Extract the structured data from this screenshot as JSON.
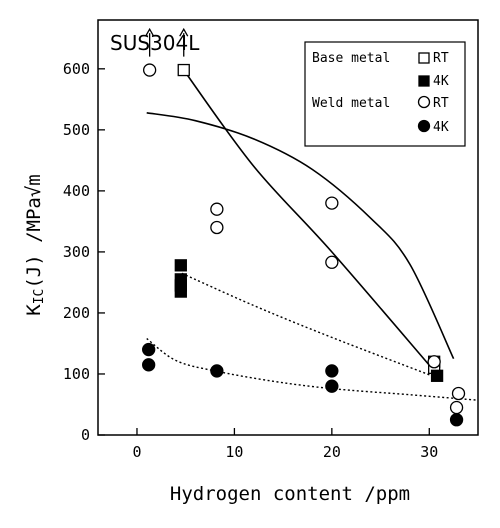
{
  "chart_data": {
    "type": "scatter",
    "title": "SUS304L",
    "xlabel": "Hydrogen content /ppm",
    "ylabel": "K",
    "ylabel_sub": "IC",
    "ylabel_rest": "(J) /MPa√m",
    "xlim": [
      -4,
      35
    ],
    "ylim": [
      0,
      680
    ],
    "xticks": [
      0,
      10,
      20,
      30
    ],
    "yticks": [
      0,
      100,
      200,
      300,
      400,
      500,
      600
    ],
    "grid": false,
    "legend_position": "top-right",
    "legend": {
      "groups": [
        {
          "label": "Base metal",
          "entries": [
            {
              "label": "RT",
              "marker": "open-square"
            },
            {
              "label": "4K",
              "marker": "filled-square"
            }
          ]
        },
        {
          "label": "Weld metal",
          "entries": [
            {
              "label": "RT",
              "marker": "open-circle"
            },
            {
              "label": "4K",
              "marker": "filled-circle"
            }
          ]
        }
      ]
    },
    "series": [
      {
        "group": "Base metal",
        "name": "RT",
        "marker": "open-square",
        "points": [
          [
            4.8,
            598
          ],
          [
            30.5,
            120
          ],
          [
            30.5,
            110
          ]
        ]
      },
      {
        "group": "Base metal",
        "name": "4K",
        "marker": "filled-square",
        "points": [
          [
            4.5,
            278
          ],
          [
            4.5,
            255
          ],
          [
            4.5,
            245
          ],
          [
            4.5,
            235
          ],
          [
            30.8,
            97
          ]
        ]
      },
      {
        "group": "Weld metal",
        "name": "RT",
        "marker": "open-circle",
        "points": [
          [
            1.3,
            598
          ],
          [
            8.2,
            370
          ],
          [
            8.2,
            340
          ],
          [
            20.0,
            380
          ],
          [
            20.0,
            283
          ],
          [
            30.5,
            120
          ],
          [
            33.0,
            68
          ],
          [
            32.8,
            45
          ]
        ]
      },
      {
        "group": "Weld metal",
        "name": "4K",
        "marker": "filled-circle",
        "points": [
          [
            1.2,
            140
          ],
          [
            1.2,
            115
          ],
          [
            8.2,
            105
          ],
          [
            20.0,
            105
          ],
          [
            20.0,
            80
          ],
          [
            32.8,
            25
          ]
        ]
      }
    ],
    "curves": [
      {
        "style": "solid",
        "points": [
          [
            4.8,
            598
          ],
          [
            12,
            440
          ],
          [
            20,
            300
          ],
          [
            30.5,
            105
          ]
        ]
      },
      {
        "style": "solid",
        "points": [
          [
            1.0,
            528
          ],
          [
            6,
            515
          ],
          [
            12,
            485
          ],
          [
            18,
            435
          ],
          [
            24,
            355
          ],
          [
            28,
            280
          ],
          [
            32.5,
            125
          ]
        ]
      },
      {
        "style": "dotted",
        "points": [
          [
            4.6,
            265
          ],
          [
            12,
            212
          ],
          [
            20,
            160
          ],
          [
            30.6,
            95
          ]
        ]
      },
      {
        "style": "dotted",
        "points": [
          [
            1.0,
            158
          ],
          [
            4,
            122
          ],
          [
            8,
            105
          ],
          [
            14,
            88
          ],
          [
            20,
            76
          ],
          [
            28,
            66
          ],
          [
            35,
            57
          ]
        ]
      }
    ],
    "annotations": [
      {
        "type": "arrow-up",
        "from": [
          1.3,
          620
        ],
        "to": [
          1.3,
          665
        ]
      },
      {
        "type": "arrow-up",
        "from": [
          4.8,
          620
        ],
        "to": [
          4.8,
          665
        ]
      }
    ]
  }
}
